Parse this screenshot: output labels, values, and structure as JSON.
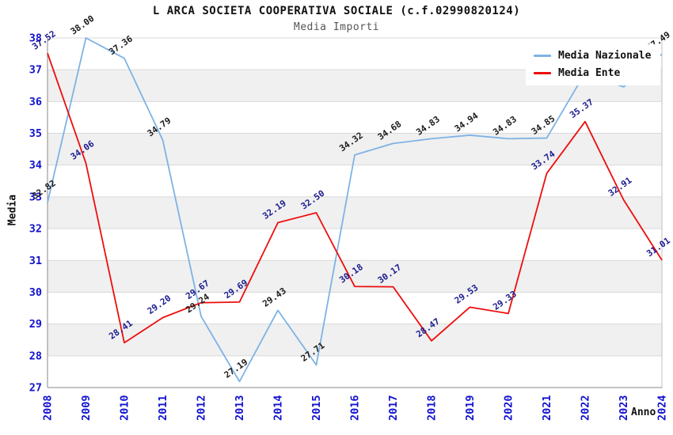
{
  "header": {
    "title": "L ARCA SOCIETA COOPERATIVA SOCIALE (c.f.02990820124)",
    "subtitle": "Media Importi"
  },
  "legend": {
    "position": "top-right",
    "items": [
      {
        "label": "Media Nazionale",
        "color": "#7db3e5"
      },
      {
        "label": "Media Ente",
        "color": "#ee0d0d"
      }
    ]
  },
  "chart_data": {
    "type": "line",
    "x": [
      "2008",
      "2009",
      "2010",
      "2011",
      "2012",
      "2013",
      "2014",
      "2015",
      "2016",
      "2017",
      "2018",
      "2019",
      "2020",
      "2021",
      "2022",
      "2023",
      "2024"
    ],
    "series": [
      {
        "name": "Media Nazionale",
        "color": "#7db3e5",
        "label_color": "#1b1b1b",
        "values": [
          32.82,
          38.0,
          37.36,
          34.79,
          29.24,
          27.19,
          29.43,
          27.71,
          34.32,
          34.68,
          34.83,
          34.94,
          34.83,
          34.85,
          36.9,
          36.46,
          37.49
        ]
      },
      {
        "name": "Media Ente",
        "color": "#ee0d0d",
        "label_color": "#1c1c8f",
        "values": [
          37.52,
          34.06,
          28.41,
          29.2,
          29.67,
          29.69,
          32.19,
          32.5,
          30.18,
          30.17,
          28.47,
          29.53,
          29.33,
          33.74,
          35.37,
          32.91,
          31.01
        ]
      }
    ],
    "title": "L ARCA SOCIETA COOPERATIVA SOCIALE (c.f.02990820124)",
    "subtitle": "Media Importi",
    "xlabel": "Anno",
    "ylabel": "Media",
    "ylim": [
      27,
      38
    ],
    "yticks": [
      27,
      28,
      29,
      30,
      31,
      32,
      33,
      34,
      35,
      36,
      37,
      38
    ],
    "grid": true,
    "band_color": "#f0f0f0",
    "grid_color": "#d9d9d9",
    "spine_color": "#8a8a8a",
    "tick_label_color": "#1212cf",
    "legend_position": "top-right"
  }
}
